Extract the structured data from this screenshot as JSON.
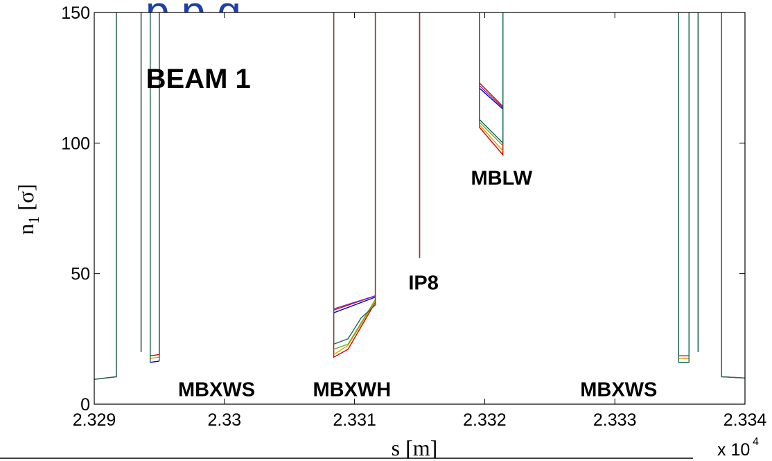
{
  "chart_data": {
    "type": "line",
    "title": "",
    "title_fragment": "p p g",
    "xlabel": "s [m]",
    "ylabel_main": "n",
    "ylabel_sub": "1",
    "ylabel_rest": " [σ]",
    "x_multiplier_base": "x 10",
    "x_multiplier_exp": "4",
    "xlim": [
      2.329,
      2.334
    ],
    "ylim": [
      0,
      150
    ],
    "xticks": [
      2.329,
      2.33,
      2.331,
      2.332,
      2.333,
      2.334
    ],
    "xtick_labels": [
      "2.329",
      "2.33",
      "2.331",
      "2.332",
      "2.333",
      "2.334"
    ],
    "yticks": [
      0,
      50,
      100,
      150
    ],
    "ytick_labels": [
      "0",
      "50",
      "100",
      "150"
    ],
    "grid": false,
    "annotations": [
      {
        "text": "BEAM 1",
        "x": 2.3298,
        "y": 121,
        "size": "large"
      },
      {
        "text": "MBXWS",
        "x": 2.32994,
        "y": 3,
        "size": "normal"
      },
      {
        "text": "MBXWH",
        "x": 2.33098,
        "y": 3,
        "size": "normal"
      },
      {
        "text": "MBXWS",
        "x": 2.33303,
        "y": 3,
        "size": "normal"
      },
      {
        "text": "MBLW",
        "x": 2.33213,
        "y": 84,
        "size": "normal"
      },
      {
        "text": "IP8",
        "x": 2.33153,
        "y": 44,
        "size": "normal"
      }
    ],
    "series": [
      {
        "color": "#cc0000",
        "segments": [
          [
            [
              2.329,
              9.5
            ],
            [
              2.32917,
              10.5
            ],
            [
              2.32917,
              150
            ]
          ],
          [
            [
              2.32936,
              20
            ],
            [
              2.32936,
              150
            ]
          ],
          [
            [
              2.32943,
              16
            ],
            [
              2.32943,
              150
            ]
          ],
          [
            [
              2.32943,
              18.5
            ],
            [
              2.3295,
              19
            ],
            [
              2.3295,
              150
            ]
          ],
          [
            [
              2.33084,
              150
            ],
            [
              2.33084,
              18
            ],
            [
              2.33095,
              21
            ],
            [
              2.33116,
              39
            ],
            [
              2.33116,
              150
            ]
          ],
          [
            [
              2.33084,
              36
            ],
            [
              2.33116,
              41.5
            ]
          ],
          [
            [
              2.3315,
              56
            ],
            [
              2.3315,
              150
            ]
          ],
          [
            [
              2.33196,
              150
            ],
            [
              2.33196,
              106
            ],
            [
              2.33214,
              95.5
            ],
            [
              2.33214,
              150
            ]
          ],
          [
            [
              2.33196,
              123
            ],
            [
              2.33214,
              114
            ]
          ],
          [
            [
              2.33349,
              150
            ],
            [
              2.33349,
              18.5
            ],
            [
              2.33357,
              18.5
            ],
            [
              2.33357,
              150
            ]
          ],
          [
            [
              2.33364,
              20
            ],
            [
              2.33364,
              150
            ]
          ],
          [
            [
              2.33382,
              150
            ],
            [
              2.33382,
              10.5
            ],
            [
              2.334,
              10
            ]
          ]
        ]
      },
      {
        "color": "#e0a000",
        "segments": [
          [
            [
              2.33084,
              19
            ],
            [
              2.33095,
              22.5
            ],
            [
              2.33116,
              39.5
            ]
          ],
          [
            [
              2.33196,
              107
            ],
            [
              2.33214,
              97
            ]
          ],
          [
            [
              2.32943,
              17.5
            ],
            [
              2.3295,
              18
            ]
          ],
          [
            [
              2.33349,
              17.5
            ],
            [
              2.33357,
              17.5
            ]
          ]
        ]
      },
      {
        "color": "#7b2fbe",
        "segments": [
          [
            [
              2.33084,
              36.5
            ],
            [
              2.33116,
              41.5
            ]
          ],
          [
            [
              2.33196,
              122
            ],
            [
              2.33214,
              113.5
            ]
          ]
        ]
      },
      {
        "color": "#0000cc",
        "segments": [
          [
            [
              2.33084,
              35
            ],
            [
              2.33116,
              41
            ]
          ],
          [
            [
              2.33196,
              121
            ],
            [
              2.33214,
              113
            ]
          ],
          [
            [
              2.32943,
              16
            ],
            [
              2.3295,
              16.5
            ]
          ],
          [
            [
              2.33349,
              16
            ],
            [
              2.33357,
              16
            ]
          ]
        ]
      },
      {
        "color": "#77aa22",
        "segments": [
          [
            [
              2.33084,
              21
            ],
            [
              2.33095,
              23
            ],
            [
              2.33116,
              40
            ]
          ],
          [
            [
              2.33196,
              108
            ],
            [
              2.33214,
              99
            ]
          ]
        ]
      },
      {
        "color": "#1a6b55",
        "segments": [
          [
            [
              2.329,
              9.5
            ],
            [
              2.32917,
              10.5
            ],
            [
              2.32917,
              150
            ]
          ],
          [
            [
              2.32936,
              20
            ],
            [
              2.32936,
              150
            ]
          ],
          [
            [
              2.32943,
              16
            ],
            [
              2.32943,
              150
            ]
          ],
          [
            [
              2.3295,
              16.5
            ],
            [
              2.3295,
              150
            ]
          ],
          [
            [
              2.33084,
              150
            ],
            [
              2.33084,
              23
            ],
            [
              2.33095,
              25
            ],
            [
              2.33105,
              33
            ],
            [
              2.33116,
              38
            ],
            [
              2.33116,
              150
            ]
          ],
          [
            [
              2.3315,
              56
            ],
            [
              2.3315,
              150
            ]
          ],
          [
            [
              2.33196,
              150
            ],
            [
              2.33196,
              109
            ],
            [
              2.33214,
              100
            ],
            [
              2.33214,
              150
            ]
          ],
          [
            [
              2.33349,
              150
            ],
            [
              2.33349,
              16
            ],
            [
              2.33357,
              16
            ],
            [
              2.33357,
              150
            ]
          ],
          [
            [
              2.33364,
              20
            ],
            [
              2.33364,
              150
            ]
          ],
          [
            [
              2.33382,
              150
            ],
            [
              2.33382,
              10.5
            ],
            [
              2.334,
              10
            ]
          ]
        ]
      }
    ]
  }
}
